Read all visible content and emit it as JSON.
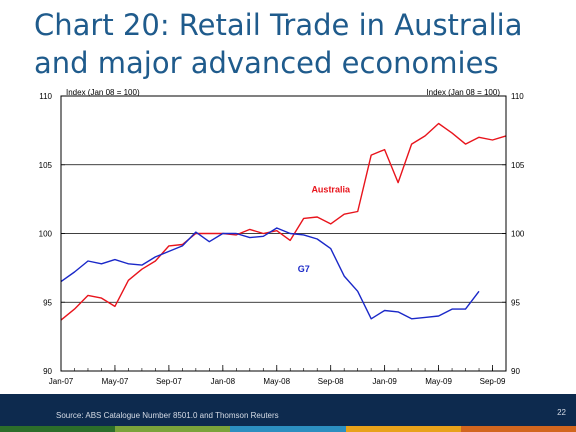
{
  "slide": {
    "title_line1": "Chart 20: Retail Trade in Australia",
    "title_line2": "and major advanced economies",
    "source": "Source: ABS Catalogue Number 8501.0 and Thomson Reuters",
    "page_number": "22"
  },
  "colors": {
    "title": "#1f5b8c",
    "footer": "#0d2a4e",
    "australia": "#e8141c",
    "g7": "#1a28c8",
    "strip": [
      "#2c6e2a",
      "#7aa33a",
      "#2c8fc0",
      "#e8a21a",
      "#d2661e"
    ]
  },
  "chart_data": {
    "type": "line",
    "left_axis_label": "Index (Jan 08 = 100)",
    "right_axis_label": "Index (Jan 08 = 100)",
    "ylim": [
      90,
      110
    ],
    "yticks": [
      90,
      95,
      100,
      105,
      110
    ],
    "ytick_labels": [
      "90",
      "95",
      "100",
      "105",
      "110"
    ],
    "x_range": [
      "2007-01",
      "2009-10"
    ],
    "x_ticks": [
      "2007-01",
      "2007-05",
      "2007-09",
      "2008-01",
      "2008-05",
      "2008-09",
      "2009-01",
      "2009-05",
      "2009-09"
    ],
    "x_tick_labels": [
      "Jan-07",
      "May-07",
      "Sep-07",
      "Jan-08",
      "May-08",
      "Sep-08",
      "Jan-09",
      "May-09",
      "Sep-09"
    ],
    "grid": "horizontal at 95, 100, 105",
    "series": [
      {
        "name": "Australia",
        "color": "#e8141c",
        "x": [
          "2007-01",
          "2007-02",
          "2007-03",
          "2007-04",
          "2007-05",
          "2007-06",
          "2007-07",
          "2007-08",
          "2007-09",
          "2007-10",
          "2007-11",
          "2007-12",
          "2008-01",
          "2008-02",
          "2008-03",
          "2008-04",
          "2008-05",
          "2008-06",
          "2008-07",
          "2008-08",
          "2008-09",
          "2008-10",
          "2008-11",
          "2008-12",
          "2009-01",
          "2009-02",
          "2009-03",
          "2009-04",
          "2009-05",
          "2009-06",
          "2009-07",
          "2009-08",
          "2009-09",
          "2009-10"
        ],
        "values": [
          93.7,
          94.5,
          95.5,
          95.3,
          94.7,
          96.6,
          97.4,
          98.0,
          99.1,
          99.2,
          100.0,
          100.0,
          100.0,
          99.9,
          100.3,
          100.0,
          100.2,
          99.5,
          101.1,
          101.2,
          100.7,
          101.4,
          101.6,
          105.7,
          106.1,
          103.7,
          106.5,
          107.1,
          108.0,
          107.3,
          106.5,
          107.0,
          106.8,
          107.1
        ]
      },
      {
        "name": "G7",
        "color": "#1a28c8",
        "x": [
          "2007-01",
          "2007-02",
          "2007-03",
          "2007-04",
          "2007-05",
          "2007-06",
          "2007-07",
          "2007-08",
          "2007-09",
          "2007-10",
          "2007-11",
          "2007-12",
          "2008-01",
          "2008-02",
          "2008-03",
          "2008-04",
          "2008-05",
          "2008-06",
          "2008-07",
          "2008-08",
          "2008-09",
          "2008-10",
          "2008-11",
          "2008-12",
          "2009-01",
          "2009-02",
          "2009-03",
          "2009-04",
          "2009-05",
          "2009-06",
          "2009-07",
          "2009-08",
          "2009-09"
        ],
        "values": [
          96.5,
          97.2,
          98.0,
          97.8,
          98.1,
          97.8,
          97.7,
          98.3,
          98.7,
          99.1,
          100.1,
          99.4,
          100.0,
          100.0,
          99.7,
          99.8,
          100.4,
          100.0,
          99.9,
          99.6,
          98.9,
          96.9,
          95.8,
          93.8,
          94.4,
          94.3,
          93.8,
          93.9,
          94.0,
          94.5,
          94.5,
          95.8,
          null
        ]
      }
    ]
  }
}
